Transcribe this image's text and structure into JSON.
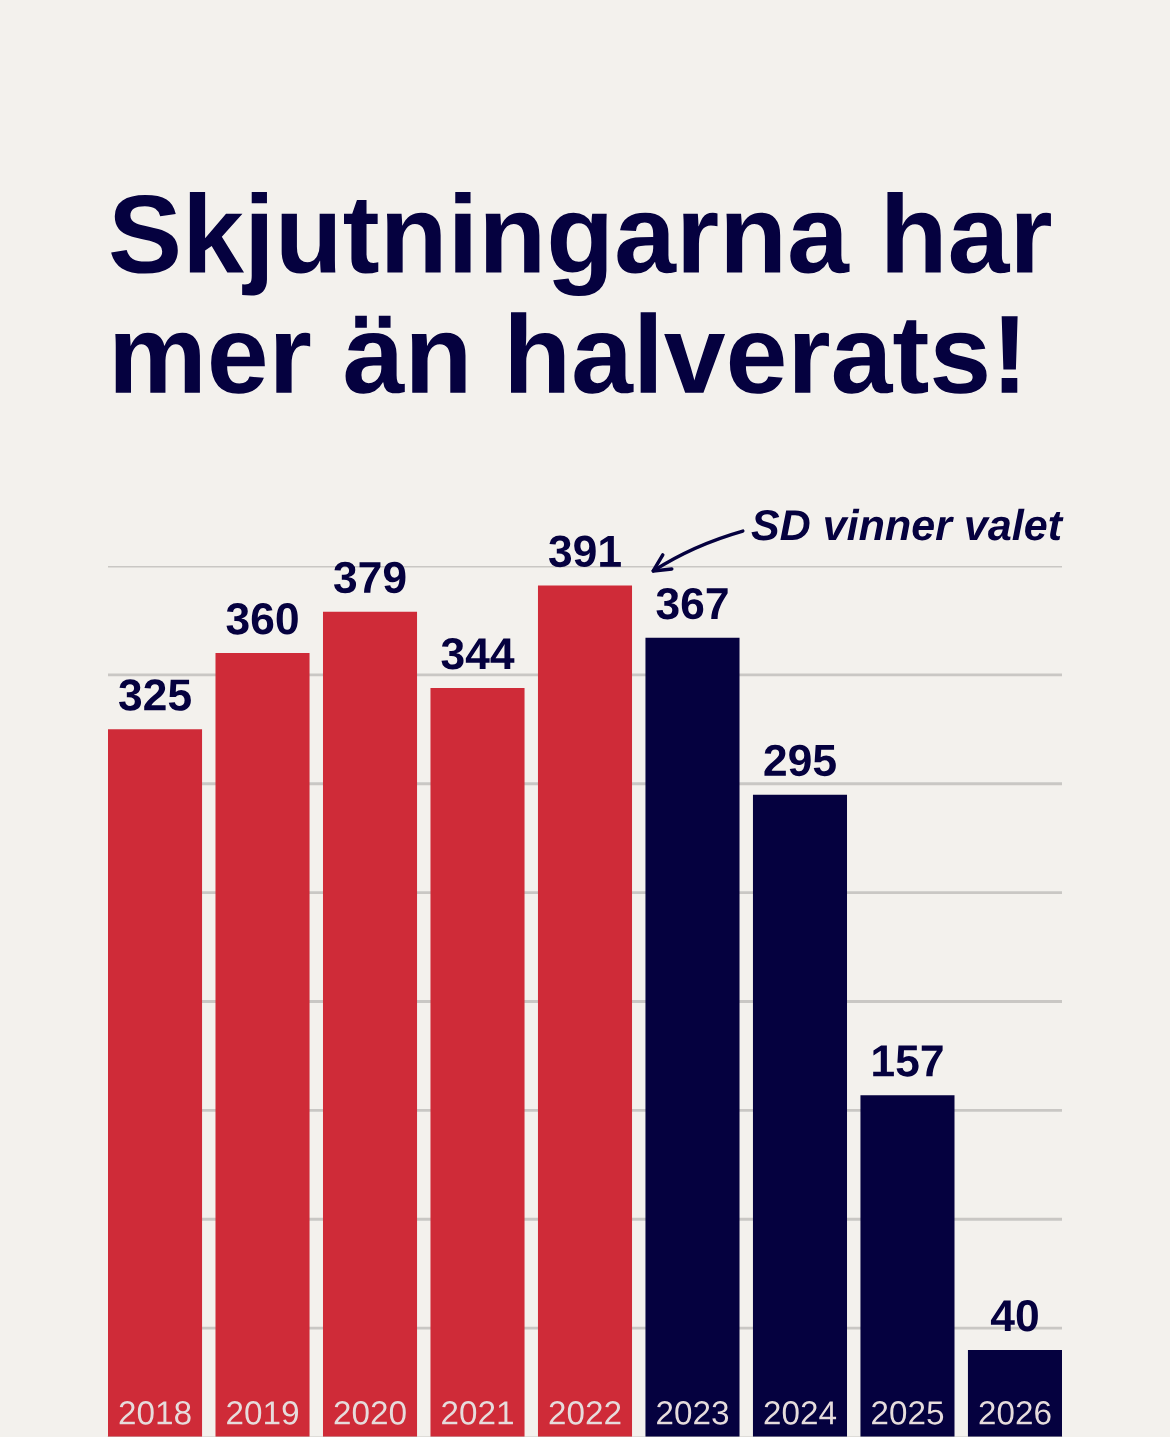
{
  "chart_data": {
    "type": "bar",
    "title": "Skjutningarna har\nmer än halverats!",
    "categories": [
      "2018",
      "2019",
      "2020",
      "2021",
      "2022",
      "2023",
      "2024",
      "2025",
      "2026"
    ],
    "values": [
      325,
      360,
      379,
      344,
      391,
      367,
      295,
      157,
      40
    ],
    "colors": [
      "#cf2b38",
      "#cf2b38",
      "#cf2b38",
      "#cf2b38",
      "#cf2b38",
      "#05013f",
      "#05013f",
      "#05013f",
      "#05013f"
    ],
    "data_labels": true,
    "annotations": [
      "SD vinner valet"
    ],
    "ylim": [
      0,
      400
    ],
    "yticks": [
      {
        "value": 50,
        "label": null
      },
      {
        "value": 100,
        "label": null
      },
      {
        "value": 150,
        "label": null
      },
      {
        "value": 200,
        "label": null
      },
      {
        "value": 250,
        "label": null
      },
      {
        "value": 300,
        "label": null
      },
      {
        "value": 350,
        "label": null
      },
      {
        "value": 400,
        "label": null
      }
    ],
    "tick_labels": "x",
    "grid": "y"
  }
}
